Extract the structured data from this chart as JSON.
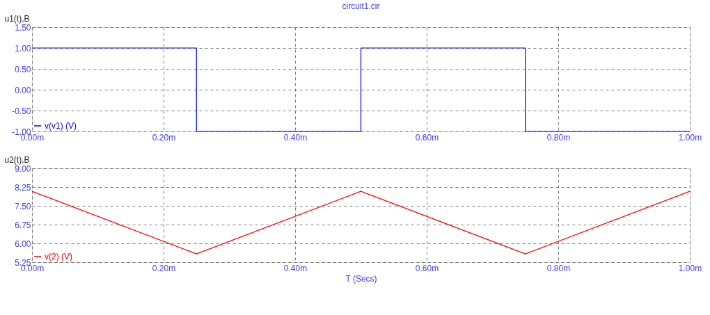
{
  "chart_data": [
    {
      "type": "line",
      "title": "circuit1.cir",
      "ylabel": "u1(t),B",
      "x": [
        0,
        0.25,
        0.25,
        0.5,
        0.5,
        0.75,
        0.75,
        1
      ],
      "series": [
        {
          "name": "v(v1) (V)",
          "color": "#0000ff",
          "values": [
            1,
            1,
            -1,
            -1,
            1,
            1,
            -1,
            -1
          ]
        }
      ],
      "xlim": [
        0,
        1
      ],
      "xticks": [
        {
          "value": 0,
          "label": "0.00m"
        },
        {
          "value": 0.2,
          "label": "0.20m"
        },
        {
          "value": 0.4,
          "label": "0.40m"
        },
        {
          "value": 0.6,
          "label": "0.60m"
        },
        {
          "value": 0.8,
          "label": "0.80m"
        },
        {
          "value": 1,
          "label": "1.00m"
        }
      ],
      "ylim": [
        -1,
        1.5
      ],
      "yticks": [
        {
          "value": -1,
          "label": "-1.00"
        },
        {
          "value": -0.5,
          "label": "-0.50"
        },
        {
          "value": 0,
          "label": "0.00"
        },
        {
          "value": 0.5,
          "label": "0.50"
        },
        {
          "value": 1,
          "label": "1.00"
        },
        {
          "value": 1.5,
          "label": "1.50"
        }
      ],
      "grid": true,
      "legend": "bottom left"
    },
    {
      "type": "line",
      "xlabel": "T (Secs)",
      "ylabel": "u2(t),B",
      "x": [
        0,
        0.25,
        0.5,
        0.75,
        1
      ],
      "series": [
        {
          "name": "v(2) (V)",
          "color": "#ff0000",
          "values": [
            8.08,
            5.58,
            8.08,
            5.58,
            8.08
          ]
        }
      ],
      "xlim": [
        0,
        1
      ],
      "xticks": [
        {
          "value": 0,
          "label": "0.00m"
        },
        {
          "value": 0.2,
          "label": "0.20m"
        },
        {
          "value": 0.4,
          "label": "0.40m"
        },
        {
          "value": 0.6,
          "label": "0.60m"
        },
        {
          "value": 0.8,
          "label": "0.80m"
        },
        {
          "value": 1,
          "label": "1.00m"
        }
      ],
      "ylim": [
        5.25,
        9
      ],
      "yticks": [
        {
          "value": 5.25,
          "label": "5.25"
        },
        {
          "value": 6,
          "label": "6.00"
        },
        {
          "value": 6.75,
          "label": "6.75"
        },
        {
          "value": 7.5,
          "label": "7.50"
        },
        {
          "value": 8.25,
          "label": "8.25"
        },
        {
          "value": 9,
          "label": "9.00"
        }
      ],
      "grid": true,
      "legend": "bottom left"
    }
  ]
}
